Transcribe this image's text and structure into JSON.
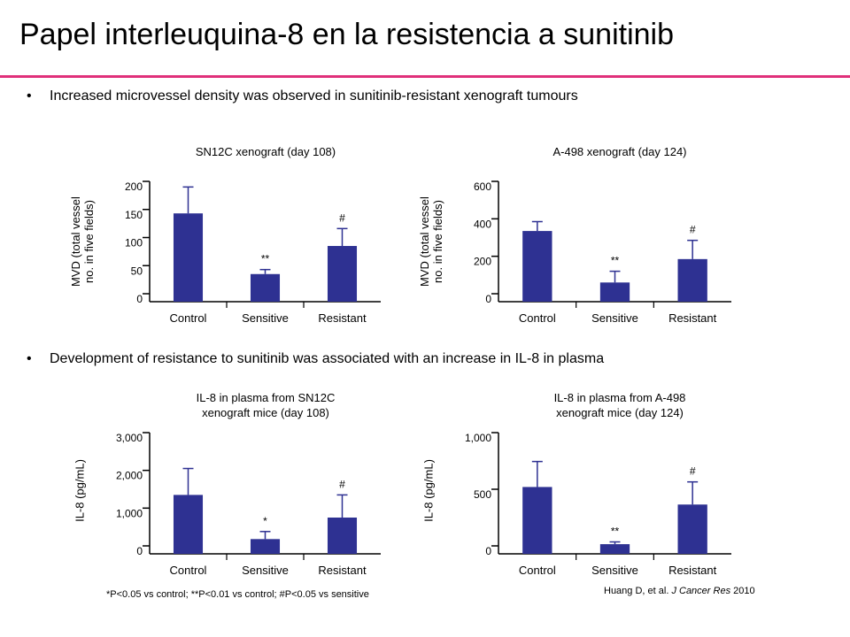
{
  "title": "Papel interleuquina-8 en la resistencia a sunitinib",
  "bullets": [
    "Increased microvessel density was observed in sunitinib-resistant xenograft tumours",
    "Development of resistance to sunitinib was associated with an increase in IL-8 in plasma"
  ],
  "bullet_symbol": "•",
  "colors": {
    "bar": "#2e3192",
    "accent_rule": "#e0307a",
    "axis": "#000000"
  },
  "footnote": "*P<0.05 vs control; **P<0.01 vs control; #P<0.05 vs sensitive",
  "citation": {
    "authors": "Huang D, et al.",
    "journal": "J Cancer Res",
    "year": "2010"
  },
  "chart_data": [
    {
      "type": "bar",
      "title": "SN12C xenograft (day 108)",
      "ylabel": "MVD (total vessel\nno. in five fields)",
      "categories": [
        "Control",
        "Sensitive",
        "Resistant"
      ],
      "values": [
        143,
        35,
        85
      ],
      "errors": [
        47,
        8,
        31
      ],
      "annotations": [
        "",
        "**",
        "#"
      ],
      "ylim": [
        0,
        200
      ],
      "yticks": [
        0,
        50,
        100,
        150,
        200
      ],
      "yticklabels": [
        "0",
        "50",
        "100",
        "150",
        "200"
      ]
    },
    {
      "type": "bar",
      "title": "A-498 xenograft (day 124)",
      "ylabel": "MVD (total vessel\nno. in five fields)",
      "categories": [
        "Control",
        "Sensitive",
        "Resistant"
      ],
      "values": [
        335,
        60,
        185
      ],
      "errors": [
        50,
        60,
        100
      ],
      "annotations": [
        "",
        "**",
        "#"
      ],
      "ylim": [
        0,
        600
      ],
      "yticks": [
        0,
        200,
        400,
        600
      ],
      "yticklabels": [
        "0",
        "200",
        "400",
        "600"
      ]
    },
    {
      "type": "bar",
      "title": "IL-8 in plasma from SN12C\nxenograft mice (day 108)",
      "ylabel": "IL-8 (pg/mL)",
      "categories": [
        "Control",
        "Sensitive",
        "Resistant"
      ],
      "values": [
        1350,
        180,
        750
      ],
      "errors": [
        700,
        200,
        600
      ],
      "annotations": [
        "",
        "*",
        "#"
      ],
      "ylim": [
        0,
        3000
      ],
      "yticks": [
        0,
        1000,
        2000,
        3000
      ],
      "yticklabels": [
        "0",
        "1,000",
        "2,000",
        "3,000"
      ]
    },
    {
      "type": "bar",
      "title": "IL-8 in plasma from A-498\nxenograft mice (day 124)",
      "ylabel": "IL-8 (pg/mL)",
      "categories": [
        "Control",
        "Sensitive",
        "Resistant"
      ],
      "values": [
        520,
        15,
        365
      ],
      "errors": [
        225,
        20,
        200
      ],
      "annotations": [
        "",
        "**",
        "#"
      ],
      "ylim": [
        0,
        1000
      ],
      "yticks": [
        0,
        500,
        1000
      ],
      "yticklabels": [
        "0",
        "500",
        "1,000"
      ]
    }
  ]
}
